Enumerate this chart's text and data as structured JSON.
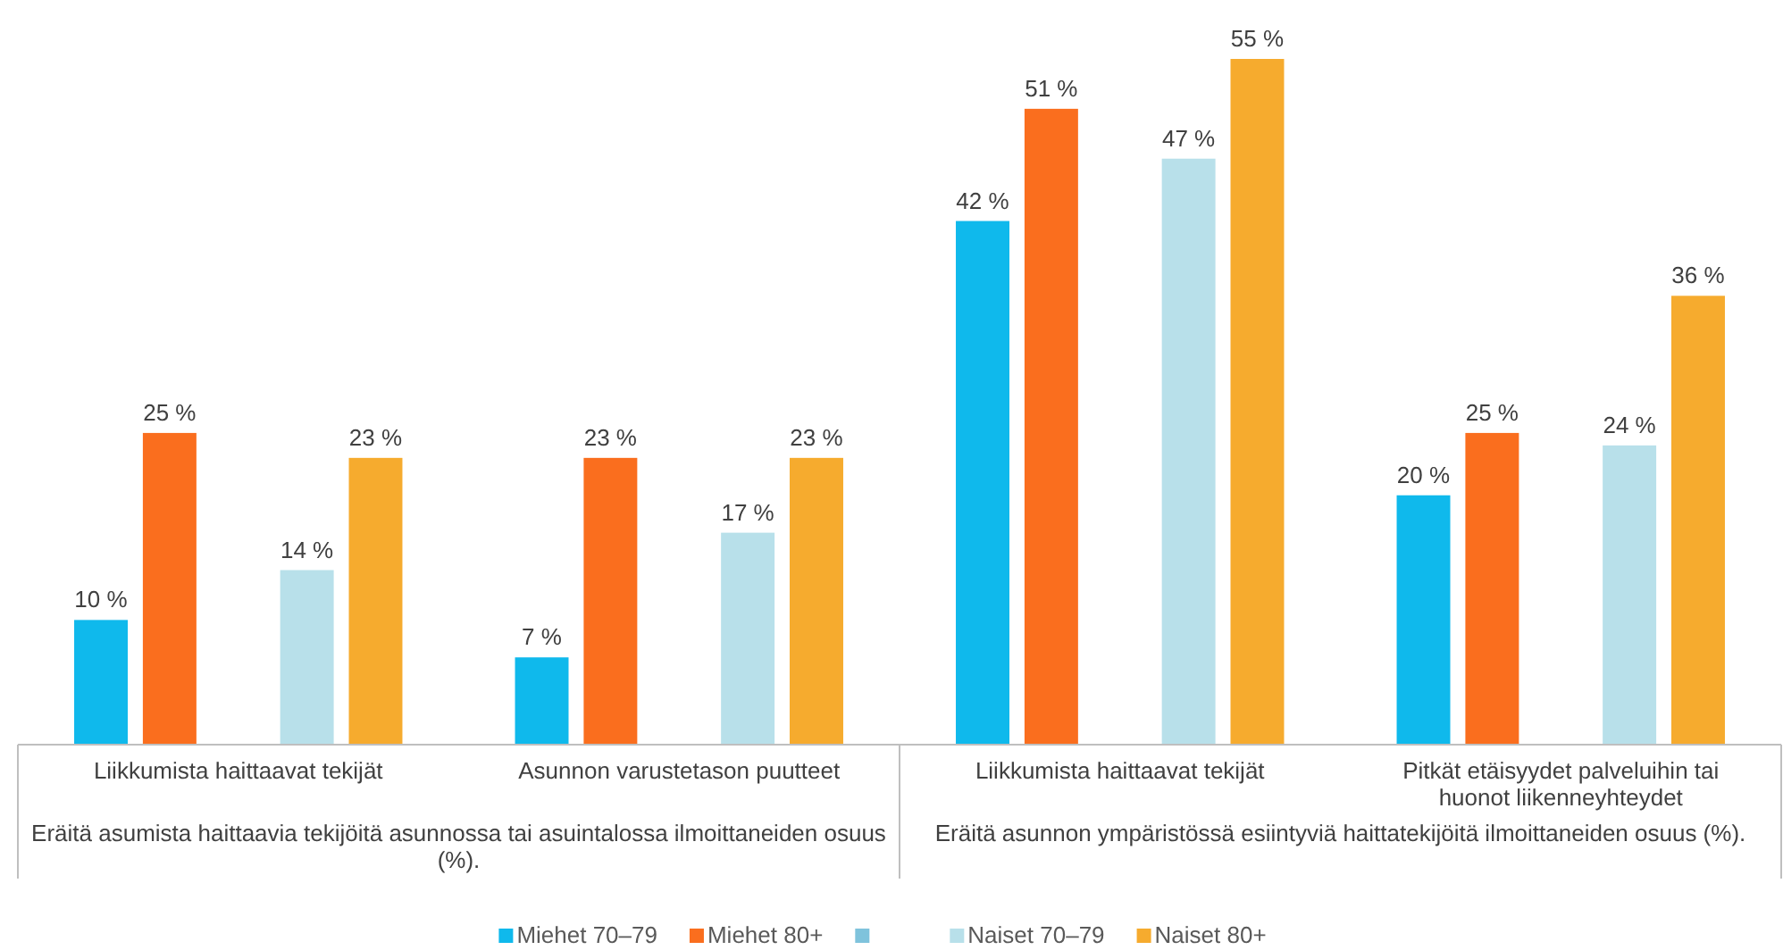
{
  "chart_data": {
    "type": "bar",
    "categories": [
      "Liikkumista haittaavat tekijät",
      "Asunnon varustetason puutteet",
      "Liikkumista haittaavat tekijät",
      "Pitkät etäisyydet palveluihin tai huonot liikenneyhteydet"
    ],
    "annotations": [
      "Eräitä asumista haittaavia tekijöitä asunnossa tai asuintalossa ilmoittaneiden osuus (%).",
      "Eräitä asunnon ympäristössä esiintyviä haittatekijöitä ilmoittaneiden osuus (%)."
    ],
    "series": [
      {
        "name": "Miehet 70–79",
        "color": "#0fb9ec",
        "values": [
          10,
          7,
          42,
          20
        ],
        "value_labels": [
          "10 %",
          "7 %",
          "42 %",
          "20 %"
        ]
      },
      {
        "name": "Miehet 80+",
        "color": "#fa6e1e",
        "values": [
          25,
          23,
          51,
          25
        ],
        "value_labels": [
          "25 %",
          "23 %",
          "51 %",
          "25 %"
        ]
      },
      {
        "color": "#7fc3dc",
        "values": [
          null,
          null,
          null,
          null
        ]
      },
      {
        "name": "Naiset 70–79",
        "color": "#b8e0ea",
        "values": [
          14,
          17,
          47,
          24
        ],
        "value_labels": [
          "14 %",
          "17 %",
          "47 %",
          "24 %"
        ]
      },
      {
        "name": "Naiset 80+",
        "color": "#f6ab2e",
        "values": [
          23,
          23,
          55,
          36
        ],
        "value_labels": [
          "23 %",
          "23 %",
          "55 %",
          "36 %"
        ]
      }
    ],
    "legend": "bottom"
  }
}
